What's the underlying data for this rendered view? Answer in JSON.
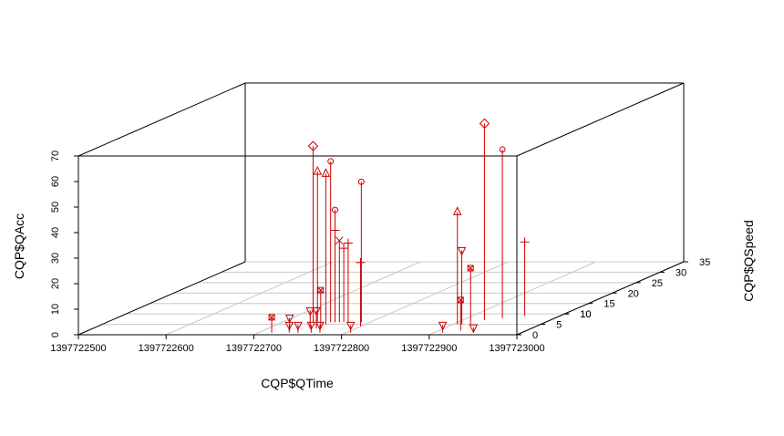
{
  "chart_data": {
    "type": "scatter3d",
    "xlabel": "CQP$QTime",
    "ylabel": "CQP$QSpeed",
    "zlabel": "CQP$QAcc",
    "xlim": [
      1397722500,
      1397723000
    ],
    "ylim": [
      0,
      35
    ],
    "zlim": [
      0,
      70
    ],
    "x_ticks": [
      "1397722500",
      "1397722600",
      "1397722700",
      "1397722800",
      "1397722900",
      "1397723000"
    ],
    "y_ticks": [
      "0",
      "5",
      "10",
      "15",
      "20",
      "25",
      "30",
      "35"
    ],
    "y_ticks_extra": [
      "10"
    ],
    "z_ticks": [
      "0",
      "10",
      "20",
      "30",
      "40",
      "50",
      "60",
      "70"
    ],
    "grid": true,
    "drop_lines": true,
    "point_color": "#cc0000",
    "line_color": "#cc0000",
    "box_color": "#000000",
    "grid_color": "#c8c8c8",
    "points": [
      {
        "x": 1397722735,
        "y": 6,
        "z": 69,
        "shape": "diamond"
      },
      {
        "x": 1397722740,
        "y": 6,
        "z": 59,
        "shape": "triangle-up"
      },
      {
        "x": 1397722755,
        "y": 6,
        "z": 63,
        "shape": "circle"
      },
      {
        "x": 1397722755,
        "y": 5,
        "z": 59,
        "shape": "triangle-up"
      },
      {
        "x": 1397722760,
        "y": 6,
        "z": 44,
        "shape": "circle"
      },
      {
        "x": 1397722760,
        "y": 6,
        "z": 36,
        "shape": "plus"
      },
      {
        "x": 1397722765,
        "y": 6,
        "z": 32,
        "shape": "x"
      },
      {
        "x": 1397722770,
        "y": 6,
        "z": 29,
        "shape": "plus"
      },
      {
        "x": 1397722775,
        "y": 6,
        "z": 31,
        "shape": "plus"
      },
      {
        "x": 1397722790,
        "y": 6,
        "z": 55,
        "shape": "circle"
      },
      {
        "x": 1397722760,
        "y": 3,
        "z": 15,
        "shape": "box-x"
      },
      {
        "x": 1397722800,
        "y": 4,
        "z": 25,
        "shape": "plus"
      },
      {
        "x": 1397722715,
        "y": 1,
        "z": 6,
        "shape": "box-x"
      },
      {
        "x": 1397722730,
        "y": 2,
        "z": 5,
        "shape": "triangle-down"
      },
      {
        "x": 1397722735,
        "y": 1,
        "z": 3,
        "shape": "triangle-down"
      },
      {
        "x": 1397722745,
        "y": 1,
        "z": 3,
        "shape": "triangle-down"
      },
      {
        "x": 1397722748,
        "y": 3,
        "z": 7,
        "shape": "triangle-down"
      },
      {
        "x": 1397722755,
        "y": 3,
        "z": 7,
        "shape": "triangle-down"
      },
      {
        "x": 1397722760,
        "y": 1,
        "z": 3,
        "shape": "triangle-down"
      },
      {
        "x": 1397722770,
        "y": 1,
        "z": 3,
        "shape": "triangle-down"
      },
      {
        "x": 1397722805,
        "y": 1,
        "z": 3,
        "shape": "triangle-down"
      },
      {
        "x": 1397722905,
        "y": 5,
        "z": 44,
        "shape": "triangle-up"
      },
      {
        "x": 1397722910,
        "y": 5,
        "z": 29,
        "shape": "triangle-down"
      },
      {
        "x": 1397722925,
        "y": 7,
        "z": 77,
        "shape": "diamond"
      },
      {
        "x": 1397722940,
        "y": 8,
        "z": 66,
        "shape": "circle"
      },
      {
        "x": 1397722910,
        "y": 1,
        "z": 3,
        "shape": "triangle-down"
      },
      {
        "x": 1397722920,
        "y": 5,
        "z": 22,
        "shape": "box-x"
      },
      {
        "x": 1397722925,
        "y": 2,
        "z": 12,
        "shape": "box-x"
      },
      {
        "x": 1397722945,
        "y": 1,
        "z": 2,
        "shape": "triangle-down"
      },
      {
        "x": 1397722960,
        "y": 9,
        "z": 29,
        "shape": "plus"
      }
    ]
  }
}
